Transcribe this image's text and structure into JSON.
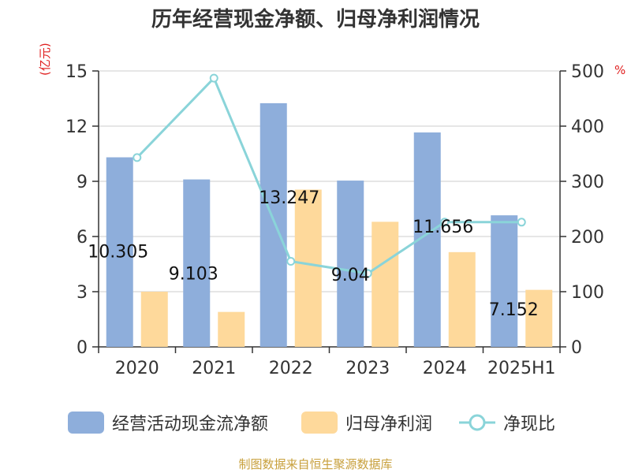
{
  "title": "历年经营现金净额、归母净利润情况",
  "unit_left": "(亿元)",
  "unit_right": "%",
  "source": "制图数据来自恒生聚源数据库",
  "colors": {
    "bar1": "#8eaedb",
    "bar2": "#fed99b",
    "line": "#8ad4d9",
    "unit": "#e02020",
    "source": "#c8a03c",
    "axis": "#333333",
    "grid": "#cccccc"
  },
  "legend": {
    "s1": "经营活动现金流净额",
    "s2": "归母净利润",
    "s3": "净现比"
  },
  "chart_data": {
    "type": "bar",
    "categories": [
      "2020",
      "2021",
      "2022",
      "2023",
      "2024",
      "2025H1"
    ],
    "series": [
      {
        "name": "经营活动现金流净额",
        "type": "bar",
        "axis": "left",
        "values": [
          10.305,
          9.103,
          13.247,
          9.04,
          11.656,
          7.152
        ],
        "labels": [
          "10.305",
          "9.103",
          "13.247",
          "9.04",
          "11.656",
          "7.152"
        ]
      },
      {
        "name": "归母净利润",
        "type": "bar",
        "axis": "left",
        "values": [
          3.0,
          1.9,
          8.55,
          6.8,
          5.15,
          3.1
        ]
      },
      {
        "name": "净现比",
        "type": "line",
        "axis": "right",
        "values": [
          343,
          487,
          155,
          133,
          226,
          226
        ]
      }
    ],
    "y_left": {
      "min": 0,
      "max": 15,
      "ticks": [
        0,
        3,
        6,
        9,
        12,
        15
      ]
    },
    "y_right": {
      "min": 0,
      "max": 500,
      "ticks": [
        0,
        100,
        200,
        300,
        400,
        500
      ]
    },
    "grid": true,
    "legend_position": "bottom"
  }
}
